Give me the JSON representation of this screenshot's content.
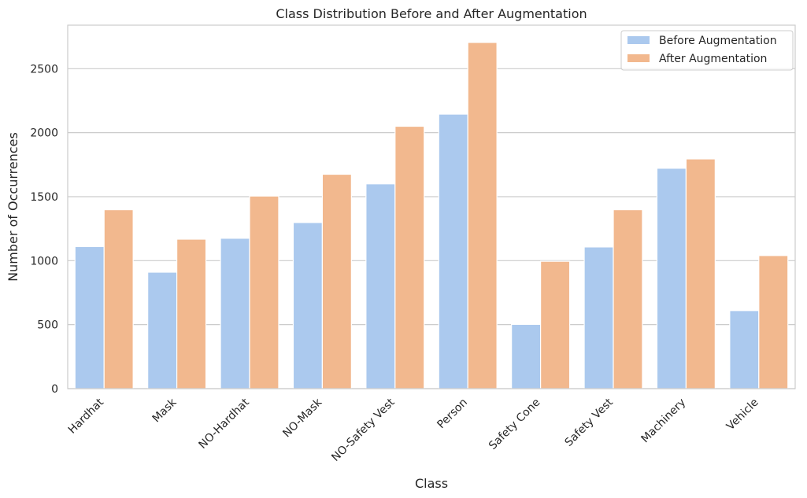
{
  "chart_data": {
    "type": "bar",
    "title": "Class Distribution Before and After Augmentation",
    "xlabel": "Class",
    "ylabel": "Number of Occurrences",
    "categories": [
      "Hardhat",
      "Mask",
      "NO-Hardhat",
      "NO-Mask",
      "NO-Safety Vest",
      "Person",
      "Safety Cone",
      "Safety Vest",
      "Machinery",
      "Vehicle"
    ],
    "series": [
      {
        "name": "Before Augmentation",
        "color": "#abc9ee",
        "values": [
          1110,
          910,
          1175,
          1298,
          1600,
          2145,
          502,
          1107,
          1722,
          610
        ]
      },
      {
        "name": "After Augmentation",
        "color": "#f2b88e",
        "values": [
          1398,
          1168,
          1505,
          1675,
          2050,
          2705,
          995,
          1398,
          1795,
          1040
        ]
      }
    ],
    "yticks": [
      0,
      500,
      1000,
      1500,
      2000,
      2500
    ],
    "ylim": [
      0,
      2840
    ],
    "grid": true,
    "legend_position": "top-right"
  }
}
